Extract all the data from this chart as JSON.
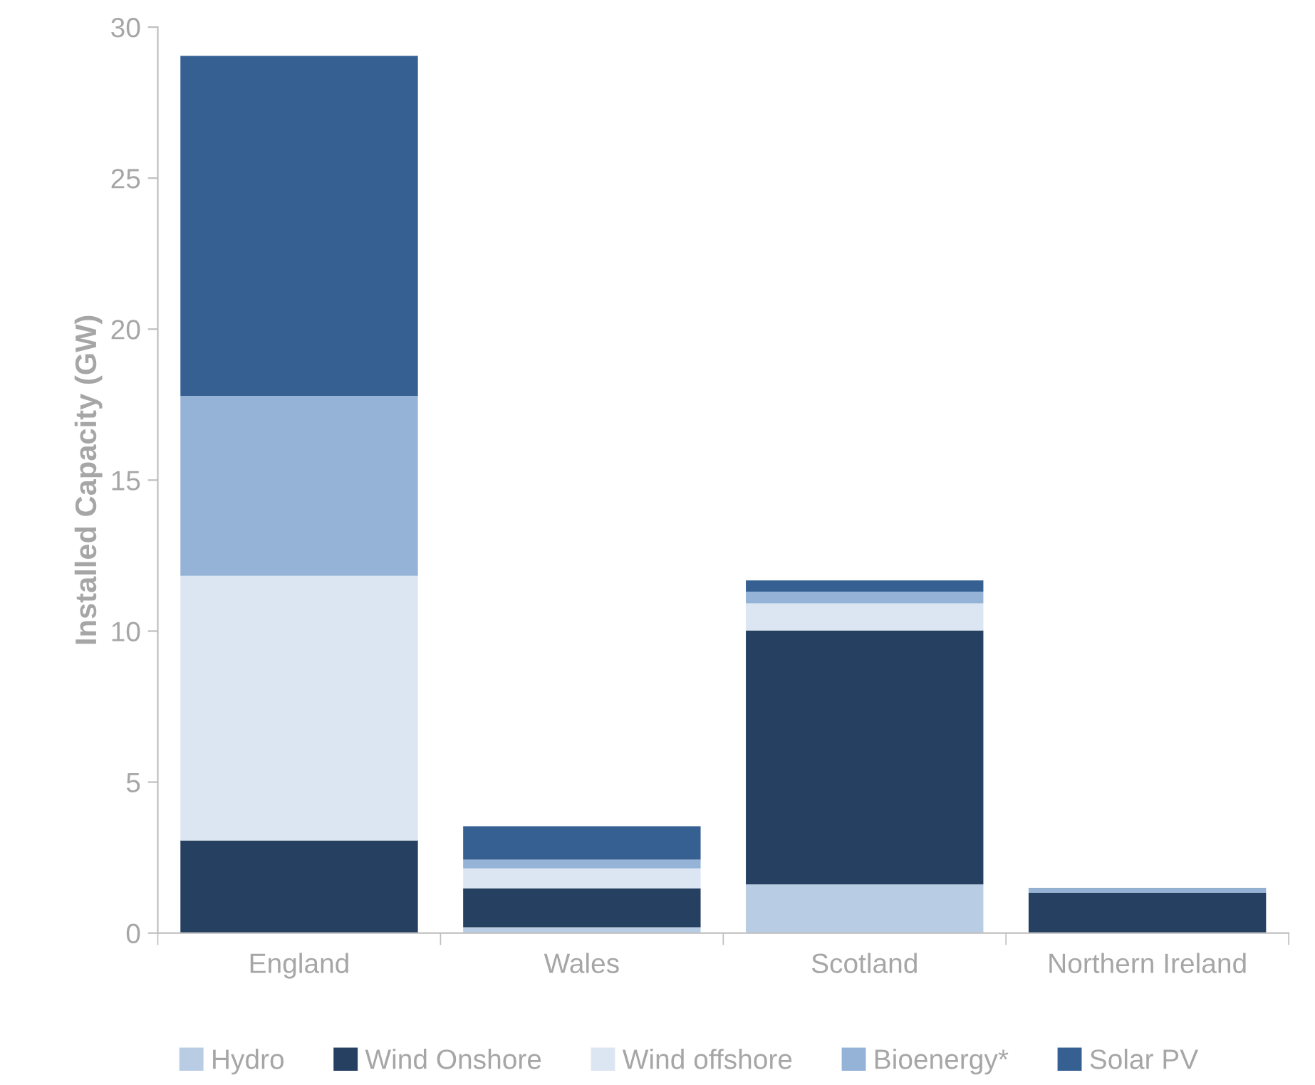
{
  "chart_data": {
    "type": "bar",
    "stacked": true,
    "ylabel": "Installed Capacity (GW)",
    "categories": [
      "England",
      "Wales",
      "Scotland",
      "Northern Ireland"
    ],
    "series": [
      {
        "name": "Hydro",
        "color": "#b8cce4",
        "values": [
          null,
          0.19,
          1.61,
          0.01
        ]
      },
      {
        "name": "Wind Onshore",
        "color": "#254061",
        "values": [
          3.07,
          1.29,
          8.41,
          1.33
        ]
      },
      {
        "name": "Wind offshore",
        "color": "#dce6f2",
        "values": [
          8.76,
          0.66,
          0.9,
          0
        ]
      },
      {
        "name": "Bioenergy*",
        "color": "#95b3d7",
        "values": [
          5.96,
          0.29,
          0.39,
          0.13
        ]
      },
      {
        "name": "Solar PV",
        "color": "#366092",
        "values": [
          11.26,
          1.11,
          0.37,
          0.02
        ]
      }
    ],
    "ylim": [
      0,
      30
    ],
    "yticks": [
      0,
      5,
      10,
      15,
      20,
      25,
      30
    ],
    "grid": false,
    "legend": "bottom"
  }
}
